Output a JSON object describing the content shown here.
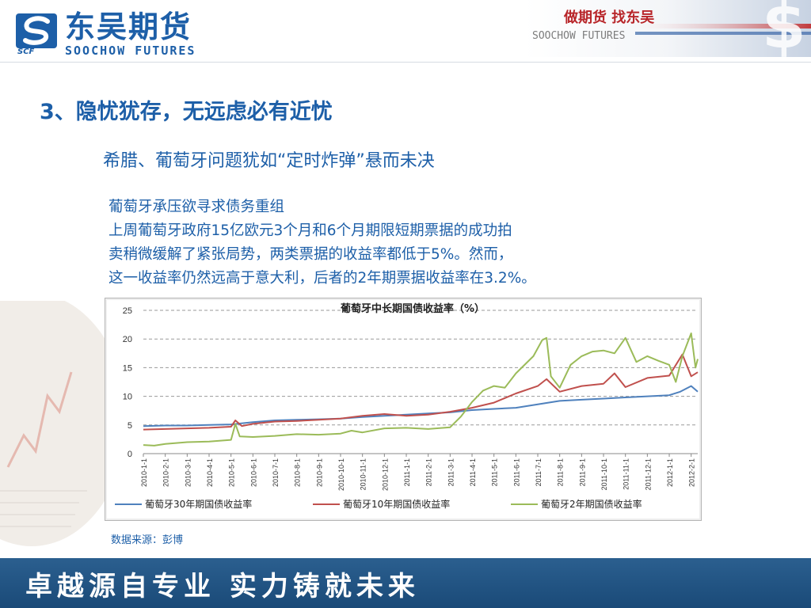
{
  "header": {
    "logo_cn": "东吴期货",
    "logo_en": "SOOCHOW FUTURES",
    "logo_abbr": "SCF",
    "slogan": "做期货 找东吴",
    "banner_en": "SOOCHOW FUTURES"
  },
  "slide": {
    "heading": "3、隐忧犹存，无远虑必有近忧",
    "subheading": "希腊、葡萄牙问题犹如“定时炸弹”悬而未决",
    "paragraph": [
      "葡萄牙承压欲寻求债务重组",
      "上周葡萄牙政府15亿欧元3个月和6个月期限短期票据的成功拍",
      "卖稍微缓解了紧张局势，两类票据的收益率都低于5%。然而，",
      "这一收益率仍然远高于意大利，后者的2年期票据收益率在3.2%。"
    ],
    "source": "数据来源：彭博"
  },
  "chart_data": {
    "type": "line",
    "title": "葡萄牙中长期国债收益率（%）",
    "ylim": [
      0,
      25
    ],
    "yticks": [
      0,
      5,
      10,
      15,
      20,
      25
    ],
    "xticks": [
      "2010-1-1",
      "2010-2-1",
      "2010-3-1",
      "2010-4-1",
      "2010-5-1",
      "2010-6-1",
      "2010-7-1",
      "2010-8-1",
      "2010-9-1",
      "2010-10-1",
      "2010-11-1",
      "2010-12-1",
      "2011-1-1",
      "2011-2-1",
      "2011-3-1",
      "2011-4-1",
      "2011-5-1",
      "2011-6-1",
      "2011-7-1",
      "2011-8-1",
      "2011-9-1",
      "2011-10-1",
      "2011-11-1",
      "2011-12-1",
      "2012-1-1",
      "2012-2-1"
    ],
    "grid": true,
    "legend_position": "bottom",
    "series": [
      {
        "name": "葡萄牙30年期国债收益率",
        "color": "#4f81bd",
        "x": [
          0,
          1,
          2,
          3,
          4,
          5,
          6,
          7,
          8,
          9,
          10,
          11,
          12,
          13,
          14,
          15,
          16,
          17,
          18,
          19,
          20,
          21,
          22,
          23,
          24,
          24.5,
          25,
          25.3
        ],
        "values": [
          4.8,
          4.9,
          4.9,
          5.0,
          5.1,
          5.5,
          5.8,
          5.9,
          6.0,
          6.1,
          6.4,
          6.6,
          6.8,
          7.0,
          7.2,
          7.6,
          7.8,
          8.0,
          8.6,
          9.2,
          9.4,
          9.6,
          9.8,
          10.0,
          10.2,
          10.8,
          11.8,
          10.8
        ]
      },
      {
        "name": "葡萄牙10年期国债收益率",
        "color": "#c0504d",
        "x": [
          0,
          1,
          2,
          3,
          4,
          4.2,
          4.5,
          5,
          6,
          7,
          8,
          9,
          10,
          11,
          12,
          13,
          14,
          15,
          16,
          17,
          18,
          18.4,
          19,
          20,
          21,
          21.5,
          22,
          23,
          24,
          24.6,
          25,
          25.3
        ],
        "values": [
          4.2,
          4.3,
          4.4,
          4.5,
          4.7,
          5.8,
          4.8,
          5.2,
          5.6,
          5.7,
          5.9,
          6.1,
          6.6,
          6.9,
          6.6,
          6.8,
          7.3,
          8.0,
          8.9,
          10.5,
          11.8,
          13.0,
          10.8,
          11.8,
          12.2,
          14.0,
          11.6,
          13.2,
          13.6,
          17.3,
          13.5,
          14.2
        ]
      },
      {
        "name": "葡萄牙2年期国债收益率",
        "color": "#9bbb59",
        "x": [
          0,
          0.5,
          1,
          2,
          3,
          4,
          4.2,
          4.4,
          5,
          6,
          7,
          8,
          9,
          9.5,
          10,
          11,
          12,
          13,
          14,
          14.5,
          15,
          15.5,
          16,
          16.5,
          17,
          17.8,
          18.2,
          18.4,
          18.6,
          19,
          19.5,
          20,
          20.5,
          21,
          21.5,
          22,
          22.5,
          23,
          23.5,
          24,
          24.3,
          24.6,
          25,
          25.2,
          25.3
        ],
        "values": [
          1.5,
          1.4,
          1.7,
          2.0,
          2.1,
          2.4,
          5.2,
          3.0,
          2.9,
          3.1,
          3.4,
          3.3,
          3.5,
          4.0,
          3.7,
          4.4,
          4.5,
          4.3,
          4.6,
          6.5,
          9.0,
          11.0,
          11.8,
          11.5,
          14.0,
          17.0,
          19.8,
          20.2,
          13.5,
          11.5,
          15.5,
          17.0,
          17.8,
          18.0,
          17.5,
          20.2,
          16.0,
          17.0,
          16.2,
          15.5,
          12.5,
          17.0,
          21.0,
          15.0,
          16.5
        ]
      }
    ]
  },
  "footer": {
    "motto": "卓越源自专业 实力铸就未来"
  },
  "colors": {
    "brand_blue": "#1d5fa8",
    "slogan_red": "#b8262a",
    "footer_bg": "#1f4f7f"
  }
}
